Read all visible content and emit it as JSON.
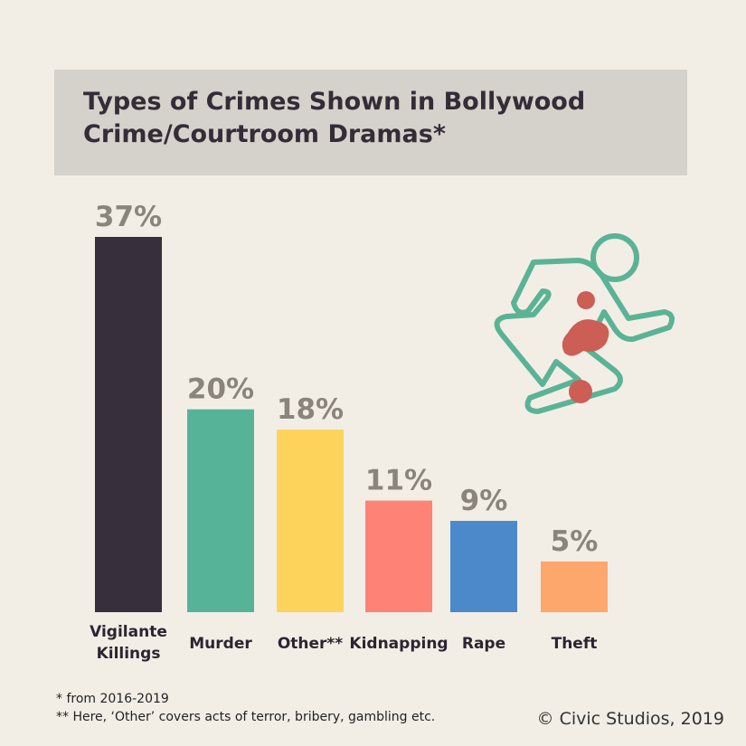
{
  "title": "Types of Crimes Shown in Bollywood\nCrime/Courtroom Dramas*",
  "chart_data": {
    "type": "bar",
    "categories": [
      "Vigilante Killings",
      "Murder",
      "Other**",
      "Kidnapping",
      "Rape",
      "Theft"
    ],
    "category_lines": [
      [
        "Vigilante",
        "Killings"
      ],
      [
        "Murder"
      ],
      [
        "Other**"
      ],
      [
        "Kidnapping"
      ],
      [
        "Rape"
      ],
      [
        "Theft"
      ]
    ],
    "values": [
      37,
      20,
      18,
      11,
      9,
      5
    ],
    "value_labels": [
      "37%",
      "20%",
      "18%",
      "11%",
      "9%",
      "5%"
    ],
    "colors": [
      "#372f3b",
      "#57b397",
      "#fdd35b",
      "#fe8276",
      "#4c89cb",
      "#fea76c"
    ],
    "ylim": [
      0,
      37
    ],
    "grid": false,
    "legend": "none"
  },
  "footnotes": [
    "* from 2016-2019",
    "** Here,  ‘Other’ covers acts of terror, bribery, gambling etc."
  ],
  "copyright": "© Civic Studios, 2019",
  "icon": {
    "name": "running-thief-icon",
    "outline_color": "#5bb396",
    "blood_color": "#cc5e55"
  }
}
